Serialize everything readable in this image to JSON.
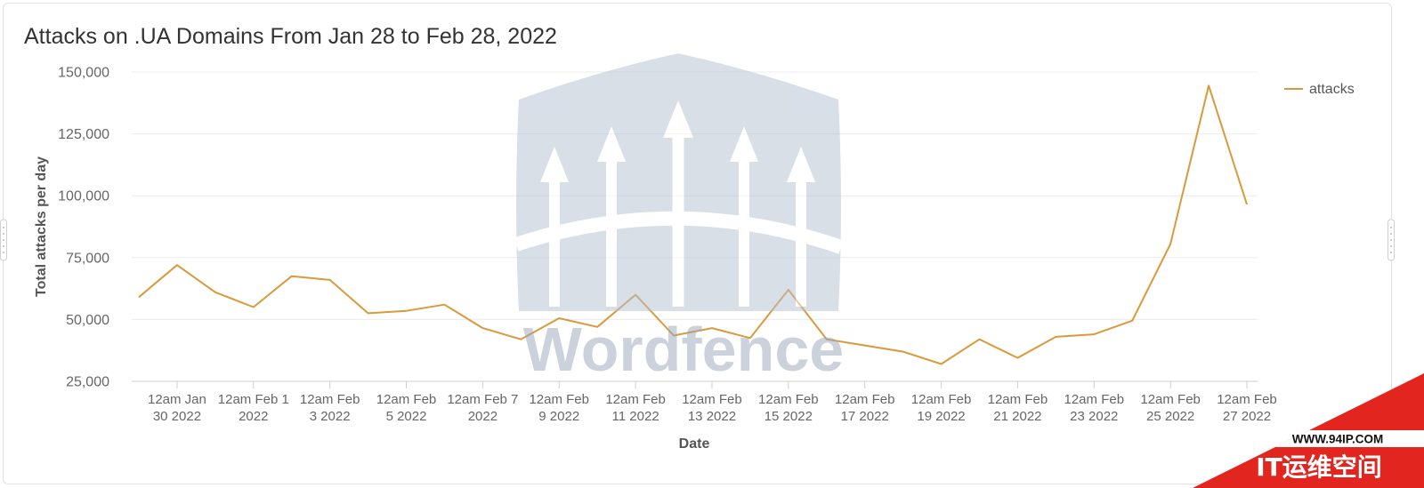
{
  "chart_data": {
    "type": "line",
    "title": "Attacks on .UA Domains From Jan 28 to Feb 28, 2022",
    "xlabel": "Date",
    "ylabel": "Total attacks per day",
    "xlim": [
      "2022-01-29",
      "2022-02-27"
    ],
    "ylim": [
      25000,
      150000
    ],
    "grid": true,
    "legend": "top-right",
    "yticks": [
      {
        "value": 25000,
        "label": "25,000"
      },
      {
        "value": 50000,
        "label": "50,000"
      },
      {
        "value": 75000,
        "label": "75,000"
      },
      {
        "value": 100000,
        "label": "100,000"
      },
      {
        "value": 125000,
        "label": "125,000"
      },
      {
        "value": 150000,
        "label": "150,000"
      }
    ],
    "xticks": [
      {
        "value": "2022-01-30",
        "label": [
          "12am Jan",
          "30 2022"
        ]
      },
      {
        "value": "2022-02-01",
        "label": [
          "12am Feb 1",
          "2022"
        ]
      },
      {
        "value": "2022-02-03",
        "label": [
          "12am Feb",
          "3 2022"
        ]
      },
      {
        "value": "2022-02-05",
        "label": [
          "12am Feb",
          "5 2022"
        ]
      },
      {
        "value": "2022-02-07",
        "label": [
          "12am Feb 7",
          "2022"
        ]
      },
      {
        "value": "2022-02-09",
        "label": [
          "12am Feb",
          "9 2022"
        ]
      },
      {
        "value": "2022-02-11",
        "label": [
          "12am Feb",
          "11 2022"
        ]
      },
      {
        "value": "2022-02-13",
        "label": [
          "12am Feb",
          "13 2022"
        ]
      },
      {
        "value": "2022-02-15",
        "label": [
          "12am Feb",
          "15 2022"
        ]
      },
      {
        "value": "2022-02-17",
        "label": [
          "12am Feb",
          "17 2022"
        ]
      },
      {
        "value": "2022-02-19",
        "label": [
          "12am Feb",
          "19 2022"
        ]
      },
      {
        "value": "2022-02-21",
        "label": [
          "12am Feb",
          "21 2022"
        ]
      },
      {
        "value": "2022-02-23",
        "label": [
          "12am Feb",
          "23 2022"
        ]
      },
      {
        "value": "2022-02-25",
        "label": [
          "12am Feb",
          "25 2022"
        ]
      },
      {
        "value": "2022-02-27",
        "label": [
          "12am Feb",
          "27 2022"
        ]
      }
    ],
    "x": [
      "2022-01-29",
      "2022-01-30",
      "2022-01-31",
      "2022-02-01",
      "2022-02-02",
      "2022-02-03",
      "2022-02-04",
      "2022-02-05",
      "2022-02-06",
      "2022-02-07",
      "2022-02-08",
      "2022-02-09",
      "2022-02-10",
      "2022-02-11",
      "2022-02-12",
      "2022-02-13",
      "2022-02-14",
      "2022-02-15",
      "2022-02-16",
      "2022-02-17",
      "2022-02-18",
      "2022-02-19",
      "2022-02-20",
      "2022-02-21",
      "2022-02-22",
      "2022-02-23",
      "2022-02-24",
      "2022-02-25",
      "2022-02-26",
      "2022-02-27"
    ],
    "series": [
      {
        "name": "attacks",
        "color": "#d99a3c",
        "values": [
          59000,
          72000,
          61000,
          55000,
          67500,
          66000,
          52500,
          53500,
          56000,
          46500,
          42000,
          50500,
          47000,
          60000,
          43500,
          46500,
          42500,
          62000,
          42000,
          39500,
          37000,
          32000,
          42000,
          34500,
          43000,
          44000,
          49500,
          80500,
          144500,
          96500
        ]
      }
    ]
  },
  "watermarks": {
    "logo_text": "Wordfence",
    "site_url": "WWW.94IP.COM",
    "site_name": "IT运维空间",
    "corner_color": "#e2261f"
  }
}
